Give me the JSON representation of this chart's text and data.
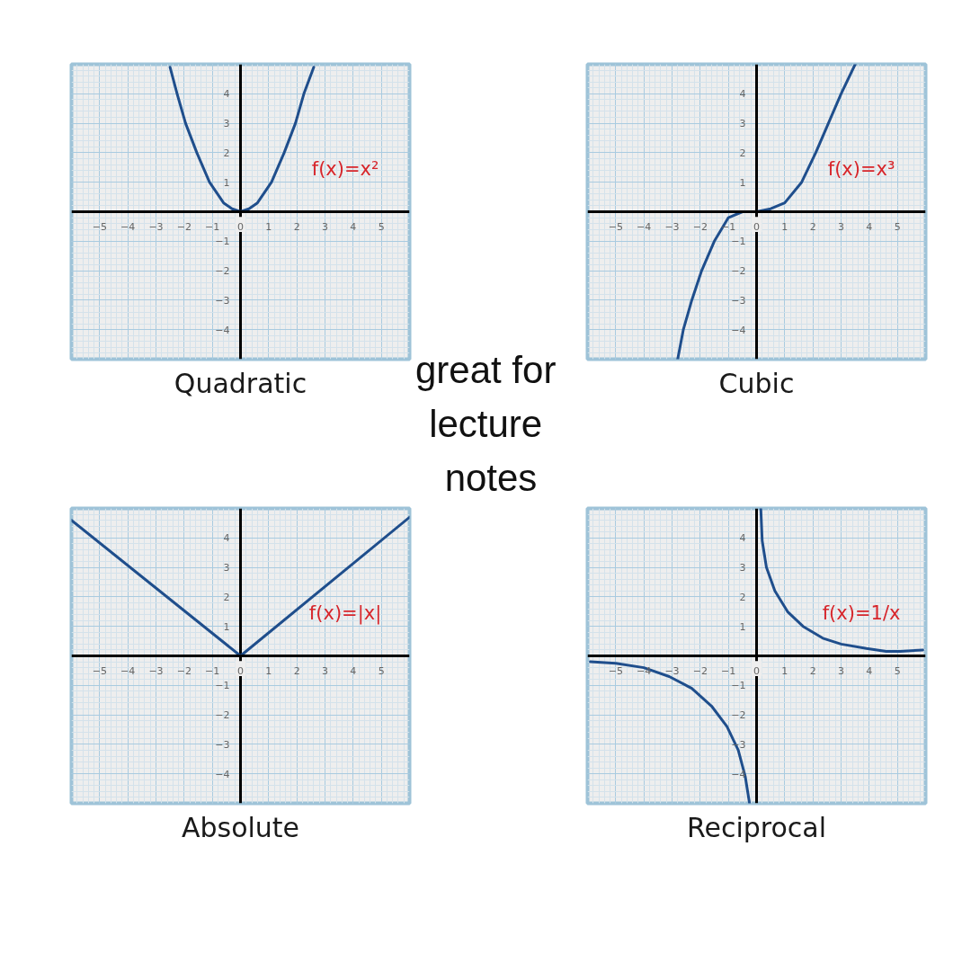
{
  "chart_data": [
    {
      "type": "line",
      "title": "Quadratic",
      "annotations": [
        "f(x)=x²"
      ],
      "x": [
        -2.5,
        -2.25,
        -1.95,
        -1.55,
        -1.1,
        -0.6,
        -0.3,
        0,
        0.3,
        0.6,
        1.1,
        1.55,
        1.95,
        2.25,
        2.6
      ],
      "series": [
        {
          "color": "#1f4e8c",
          "values": [
            4.9,
            4,
            3,
            2,
            1,
            0.3,
            0.1,
            0,
            0.1,
            0.3,
            1,
            2,
            3,
            4,
            4.9
          ]
        }
      ],
      "xlim": [
        -6,
        6
      ],
      "ylim": [
        -5,
        5
      ],
      "xticks": [
        -5,
        -4,
        -3,
        -2,
        -1,
        0,
        1,
        2,
        3,
        4,
        5
      ],
      "yticks": [
        -4,
        -3,
        -2,
        -1,
        1,
        2,
        3,
        4
      ],
      "grid": true
    },
    {
      "type": "line",
      "title": "Cubic",
      "annotations": [
        "f(x)=x³"
      ],
      "x": [
        -2.8,
        -2.6,
        -2.3,
        -1.95,
        -1.5,
        -1.0,
        -0.5,
        0,
        0.5,
        1.0,
        1.6,
        2.1,
        2.55,
        3.0,
        3.5
      ],
      "series": [
        {
          "color": "#1f4e8c",
          "values": [
            -5,
            -4,
            -3,
            -2,
            -1,
            -0.2,
            0,
            0,
            0.1,
            0.3,
            1,
            2,
            3,
            4,
            5
          ]
        }
      ],
      "xlim": [
        -6,
        6
      ],
      "ylim": [
        -5,
        5
      ],
      "xticks": [
        -5,
        -4,
        -3,
        -2,
        -1,
        0,
        1,
        2,
        3,
        4,
        5
      ],
      "yticks": [
        -4,
        -3,
        -2,
        -1,
        1,
        2,
        3,
        4
      ],
      "grid": true
    },
    {
      "type": "other",
      "annotations": [
        "great for lecture notes"
      ]
    },
    {
      "type": "line",
      "title": "Absolute",
      "annotations": [
        "f(x)=|x|"
      ],
      "x": [
        -6,
        0,
        6
      ],
      "series": [
        {
          "color": "#1f4e8c",
          "values": [
            4.6,
            0,
            4.7
          ]
        }
      ],
      "xlim": [
        -6,
        6
      ],
      "ylim": [
        -5,
        5
      ],
      "xticks": [
        -5,
        -4,
        -3,
        -2,
        -1,
        0,
        1,
        2,
        3,
        4,
        5
      ],
      "yticks": [
        -4,
        -3,
        -2,
        -1,
        1,
        2,
        3,
        4
      ],
      "grid": true
    },
    {
      "type": "line",
      "title": "Reciprocal",
      "annotations": [
        "f(x)=1/x"
      ],
      "x": [
        -5.9,
        -5,
        -4,
        -3.1,
        -2.3,
        -1.6,
        -1.05,
        -0.65,
        -0.4,
        -0.25,
        0,
        0.15,
        0.2,
        0.35,
        0.65,
        1.1,
        1.65,
        2.35,
        3,
        3.9,
        4.6,
        5.1,
        5.9
      ],
      "series": [
        {
          "color": "#1f4e8c",
          "values": [
            -0.2,
            -0.25,
            -0.4,
            -0.7,
            -1.1,
            -1.7,
            -2.4,
            -3.2,
            -4.1,
            -5,
            null,
            5,
            3.9,
            3,
            2.2,
            1.5,
            1,
            0.6,
            0.4,
            0.25,
            0.15,
            0.15,
            0.2
          ]
        }
      ],
      "xlim": [
        -6,
        6
      ],
      "ylim": [
        -5,
        5
      ],
      "xticks": [
        -5,
        -4,
        -3,
        -2,
        -1,
        0,
        1,
        2,
        3,
        4,
        5
      ],
      "yticks": [
        -4,
        -3,
        -2,
        -1,
        1,
        2,
        3,
        4
      ],
      "grid": true
    }
  ]
}
